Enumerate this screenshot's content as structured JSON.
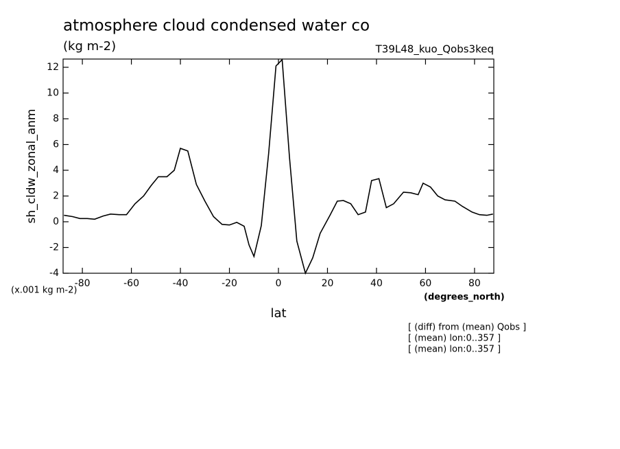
{
  "chart_data": {
    "type": "line",
    "title": "atmosphere cloud condensed water co",
    "subtitle": "(kg m-2)",
    "experiment": "T39L48_kuo_Qobs3keq",
    "y_label": "sh_cldw_zonal_anm",
    "y_units": "(x.001 kg m-2)",
    "x_units": "(degrees_north)",
    "x_label": "lat",
    "notes": [
      "[ (diff) from (mean) Qobs ]",
      "[ (mean) lon:0..357 ]",
      "[ (mean) lon:0..357 ]"
    ],
    "color": "#000000",
    "x": [
      -87.5,
      -84,
      -81,
      -78,
      -75,
      -71.5,
      -68.5,
      -65,
      -62,
      -58.5,
      -55,
      -52,
      -49,
      -45.5,
      -42.5,
      -40,
      -37,
      -33.5,
      -30,
      -26.5,
      -23,
      -20,
      -17,
      -14,
      -12,
      -10,
      -7,
      -4,
      -1,
      1.5,
      4.5,
      7.5,
      11,
      14,
      17,
      21,
      24,
      26.5,
      29.5,
      32.5,
      35.5,
      38,
      41,
      44,
      47,
      51,
      54,
      57,
      59,
      62,
      65,
      68,
      72,
      75,
      79,
      82,
      85,
      87.5
    ],
    "values": [
      0.5,
      0.4,
      0.25,
      0.25,
      0.2,
      0.45,
      0.6,
      0.55,
      0.55,
      1.4,
      2.0,
      2.8,
      3.5,
      3.5,
      4.0,
      5.7,
      5.5,
      2.9,
      1.6,
      0.4,
      -0.2,
      -0.25,
      -0.05,
      -0.35,
      -1.8,
      -2.7,
      -0.3,
      5.3,
      12.1,
      12.6,
      5.0,
      -1.5,
      -4.0,
      -2.8,
      -0.9,
      0.5,
      1.6,
      1.65,
      1.4,
      0.55,
      0.75,
      3.2,
      3.35,
      1.1,
      1.4,
      2.3,
      2.25,
      2.1,
      3.0,
      2.7,
      2.0,
      1.7,
      1.6,
      1.2,
      0.75,
      0.55,
      0.5,
      0.6
    ],
    "xlim": [
      -87.86,
      87.86
    ],
    "ylim": [
      -4,
      12.64
    ],
    "xticks": [
      -80,
      -60,
      -40,
      -20,
      0,
      20,
      40,
      60,
      80
    ],
    "yticks": [
      -4,
      -2,
      0,
      2,
      4,
      6,
      8,
      10,
      12
    ]
  }
}
